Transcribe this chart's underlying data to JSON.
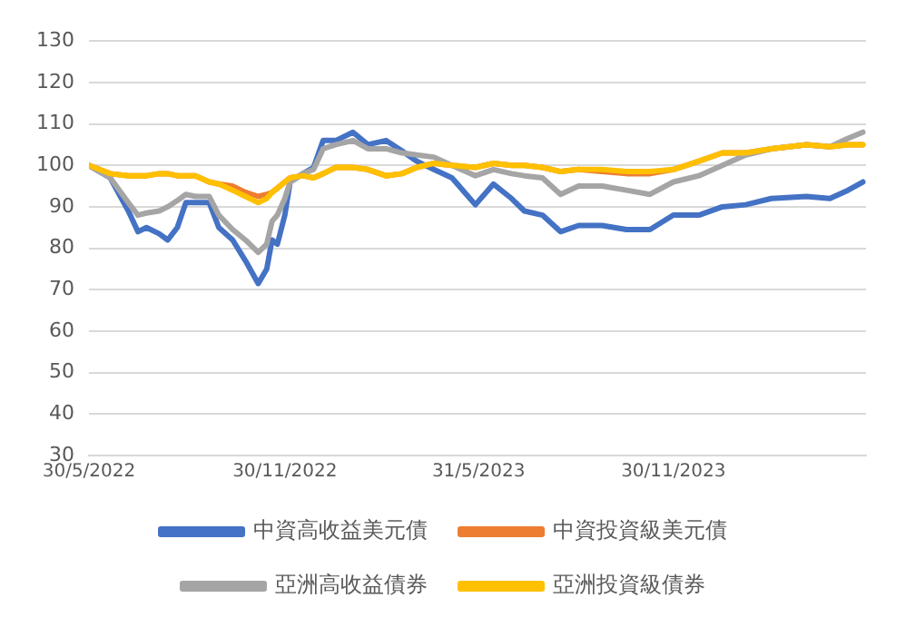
{
  "chart_data": {
    "type": "line",
    "x": [
      "2022-05-30",
      "2022-06-19",
      "2022-07-06",
      "2022-07-15",
      "2022-07-23",
      "2022-08-04",
      "2022-08-12",
      "2022-08-21",
      "2022-08-29",
      "2022-09-07",
      "2022-09-20",
      "2022-09-29",
      "2022-10-12",
      "2022-10-24",
      "2022-11-05",
      "2022-11-13",
      "2022-11-18",
      "2022-11-23",
      "2022-11-30",
      "2022-12-05",
      "2022-12-17",
      "2022-12-27",
      "2023-01-05",
      "2023-01-17",
      "2023-02-02",
      "2023-02-16",
      "2023-03-05",
      "2023-03-20",
      "2023-04-03",
      "2023-04-19",
      "2023-05-06",
      "2023-05-28",
      "2023-06-14",
      "2023-07-01",
      "2023-07-13",
      "2023-07-30",
      "2023-08-16",
      "2023-09-02",
      "2023-09-24",
      "2023-10-17",
      "2023-11-08",
      "2023-11-30",
      "2023-12-24",
      "2024-01-15",
      "2024-02-06",
      "2024-03-01",
      "2024-04-03",
      "2024-04-25",
      "2024-05-12",
      "2024-05-26"
    ],
    "series": [
      {
        "name": "中資高收益美元債",
        "color": "#4472c4",
        "values": [
          100,
          97,
          89,
          84,
          85,
          83.5,
          82,
          85,
          91,
          91,
          91,
          85,
          82,
          77,
          71.5,
          75,
          82,
          81,
          88,
          96,
          98,
          99.5,
          106,
          106,
          108,
          105,
          106,
          103.5,
          101,
          99,
          97,
          90.5,
          95.5,
          92,
          89,
          88,
          84,
          85.5,
          85.5,
          84.5,
          84.5,
          88,
          88,
          90,
          90.5,
          92,
          92.5,
          92,
          94,
          96
        ]
      },
      {
        "name": "中資投資級美元債",
        "color": "#ed7d31",
        "values": [
          100,
          98,
          97.5,
          97.5,
          97.5,
          98,
          98,
          97.5,
          97.5,
          97.5,
          96,
          95.5,
          95,
          93.5,
          92.5,
          93,
          93.5,
          94.5,
          96,
          97,
          97.5,
          97,
          98,
          99.5,
          99.5,
          99,
          97.5,
          98,
          99.5,
          100.5,
          100,
          99.5,
          100.5,
          100,
          100,
          99.5,
          98.5,
          99,
          98.5,
          98,
          98,
          99,
          101,
          103,
          103,
          104,
          105,
          104.5,
          105,
          105
        ]
      },
      {
        "name": "亞洲高收益債券",
        "color": "#a5a5a5",
        "values": [
          100,
          97,
          91,
          88,
          88.5,
          89,
          90,
          91.5,
          93,
          92.5,
          92.5,
          88,
          84.5,
          82,
          79,
          81,
          86.5,
          88,
          92,
          96,
          98,
          99,
          104,
          105,
          106,
          104,
          104,
          103,
          102.5,
          102,
          100,
          97.5,
          99,
          98,
          97.5,
          97,
          93,
          95,
          95,
          94,
          93,
          96,
          97.5,
          100,
          102.5,
          104,
          105,
          104.5,
          106.5,
          108
        ]
      },
      {
        "name": "亞洲投資級債券",
        "color": "#ffc000",
        "values": [
          100,
          98,
          97.5,
          97.5,
          97.5,
          98,
          98,
          97.5,
          97.5,
          97.5,
          96,
          95.5,
          94,
          92.5,
          91,
          92,
          93.5,
          94.5,
          96,
          97,
          97.5,
          97,
          98,
          99.5,
          99.5,
          99,
          97.5,
          98,
          99.5,
          100.5,
          100,
          99.5,
          100.5,
          100,
          100,
          99.5,
          98.5,
          99,
          99,
          98.5,
          98.5,
          99,
          101,
          103,
          103,
          104,
          105,
          104.5,
          105,
          105
        ]
      }
    ],
    "xlim": [
      "2022-05-30",
      "2024-05-29"
    ],
    "xticks": [
      {
        "value": "2022-05-30",
        "label": "30/5/2022"
      },
      {
        "value": "2022-11-30",
        "label": "30/11/2022"
      },
      {
        "value": "2023-05-31",
        "label": "31/5/2023"
      },
      {
        "value": "2023-11-30",
        "label": "30/11/2023"
      }
    ],
    "ylim": [
      30,
      130
    ],
    "yticks": [
      30,
      40,
      50,
      60,
      70,
      80,
      90,
      100,
      110,
      120,
      130
    ],
    "grid": "y",
    "legend": "bottom",
    "marker": "none",
    "line_style": "solid"
  }
}
